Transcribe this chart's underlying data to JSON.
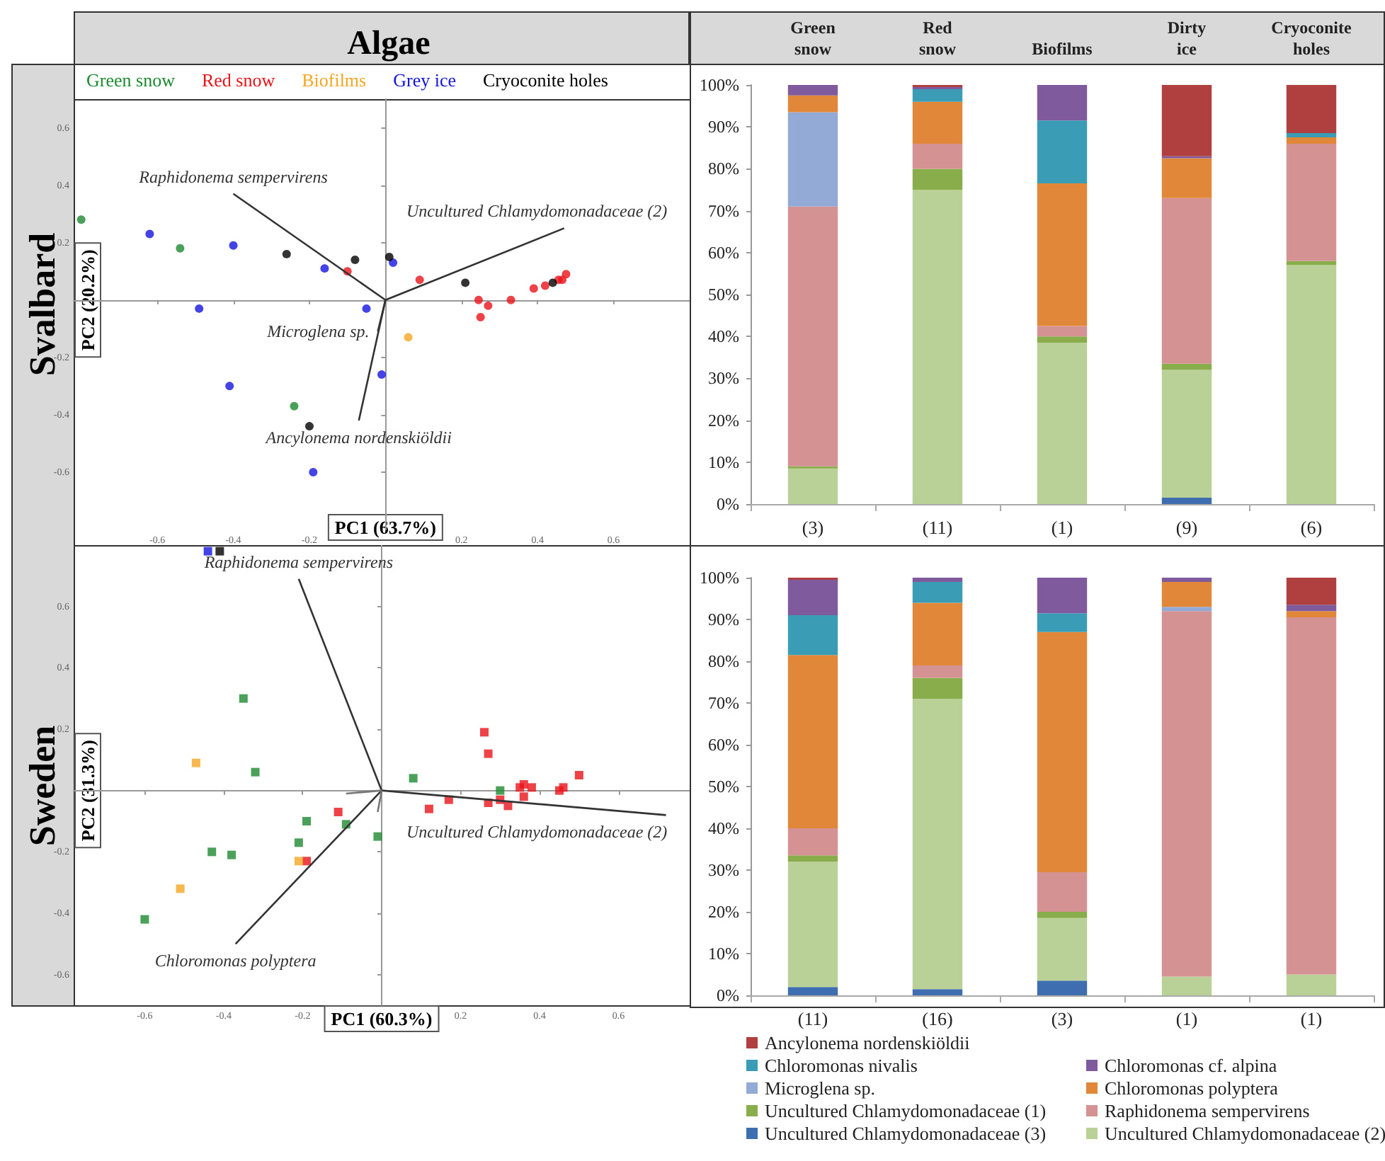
{
  "chart_data": [
    {
      "type": "scatter",
      "title": "Algae",
      "subtitle": "Svalbard",
      "xlabel": "PC1 (63.7%)",
      "ylabel": "PC2 (20.2%)",
      "marker": "circle",
      "legend": "top",
      "xlim": [
        -0.82,
        0.8
      ],
      "ylim": [
        -0.8,
        0.7
      ],
      "xticks": [
        -0.6,
        -0.4,
        -0.2,
        0.2,
        0.4,
        0.6
      ],
      "yticks": [
        -0.6,
        -0.4,
        -0.2,
        0.2,
        0.4,
        0.6
      ],
      "series": [
        {
          "name": "Green snow",
          "color": "#1e8a30",
          "x": [
            -0.8,
            -0.54,
            -0.24
          ],
          "values": [
            0.28,
            0.18,
            -0.37
          ]
        },
        {
          "name": "Red snow",
          "color": "#e8141a",
          "x": [
            -0.1,
            0.09,
            0.245,
            0.27,
            0.25,
            0.33,
            0.39,
            0.42,
            0.455,
            0.465,
            0.475
          ],
          "values": [
            0.1,
            0.07,
            0.0,
            -0.02,
            -0.06,
            0.0,
            0.04,
            0.05,
            0.07,
            0.07,
            0.09
          ]
        },
        {
          "name": "Biofilms",
          "color": "#f5a623",
          "x": [
            0.06
          ],
          "values": [
            -0.13
          ]
        },
        {
          "name": "Grey ice",
          "color": "#1414e0",
          "x": [
            -0.62,
            -0.4,
            -0.49,
            -0.16,
            -0.05,
            0.02,
            -0.01,
            -0.41,
            -0.19
          ],
          "values": [
            0.23,
            0.19,
            -0.03,
            0.11,
            -0.03,
            0.13,
            -0.26,
            -0.3,
            -0.6
          ]
        },
        {
          "name": "Cryoconite holes",
          "color": "#000000",
          "x": [
            -0.26,
            -0.08,
            0.01,
            0.21,
            0.44,
            -0.2
          ],
          "values": [
            0.16,
            0.14,
            0.15,
            0.06,
            0.06,
            -0.44
          ]
        },
        {
          "type": "line",
          "marker": "none",
          "name": "Raphidonema sempervirens",
          "color": "#333333",
          "x": [
            0,
            -0.4
          ],
          "values": [
            0,
            0.37
          ]
        },
        {
          "type": "line",
          "marker": "none",
          "name": "Uncultured Chlamydomonadaceae (2)",
          "color": "#333333",
          "x": [
            0,
            0.47
          ],
          "values": [
            0,
            0.25
          ]
        },
        {
          "type": "line",
          "marker": "none",
          "name": "Microglena sp.",
          "color": "#333333",
          "x": [
            0,
            -0.02
          ],
          "values": [
            0,
            -0.11
          ]
        },
        {
          "type": "line",
          "marker": "none",
          "name": "Ancylonema nordenskiöldii",
          "color": "#333333",
          "x": [
            0,
            -0.07
          ],
          "values": [
            0,
            -0.42
          ]
        }
      ]
    },
    {
      "type": "bar",
      "stacked": true,
      "categories": [
        "(3)",
        "(11)",
        "(1)",
        "(9)",
        "(6)"
      ],
      "annotations": [
        "Green snow",
        "Red snow",
        "Biofilms",
        "Dirty ice",
        "Cryoconite holes"
      ],
      "ylim": [
        0,
        100
      ],
      "yticks": [
        {
          "value": 0,
          "label": "0%"
        },
        {
          "value": 10,
          "label": "10%"
        },
        {
          "value": 20,
          "label": "20%"
        },
        {
          "value": 30,
          "label": "30%"
        },
        {
          "value": 40,
          "label": "40%"
        },
        {
          "value": 50,
          "label": "50%"
        },
        {
          "value": 60,
          "label": "60%"
        },
        {
          "value": 70,
          "label": "70%"
        },
        {
          "value": 80,
          "label": "80%"
        },
        {
          "value": 90,
          "label": "90%"
        },
        {
          "value": 100,
          "label": "100%"
        }
      ],
      "series": [
        {
          "color": "#3f6eb0",
          "values": [
            0,
            0,
            0,
            1.5,
            0
          ]
        },
        {
          "color": "#b9d096",
          "values": [
            8.5,
            75,
            38.5,
            30.5,
            57
          ]
        },
        {
          "color": "#8aad4c",
          "values": [
            0.5,
            5,
            1.5,
            1.5,
            1
          ]
        },
        {
          "color": "#d49292",
          "values": [
            62,
            6,
            2.5,
            39.5,
            28
          ]
        },
        {
          "color": "#93a9d6",
          "values": [
            22.5,
            0,
            0,
            0,
            0
          ]
        },
        {
          "color": "#e0873a",
          "values": [
            4,
            10,
            34,
            9.5,
            1.5
          ]
        },
        {
          "color": "#3a9cb5",
          "values": [
            0,
            3,
            15,
            0,
            1
          ]
        },
        {
          "color": "#7f5b9e",
          "values": [
            2.5,
            0.5,
            8.5,
            0.5,
            0
          ]
        },
        {
          "color": "#b0403f",
          "values": [
            0,
            0.5,
            0,
            17,
            11.5
          ]
        }
      ]
    },
    {
      "type": "scatter",
      "subtitle": "Sweden",
      "xlabel": "PC1 (60.3%)",
      "ylabel": "PC2 (31.3%)",
      "marker": "square",
      "xlim": [
        -0.78,
        0.78
      ],
      "ylim": [
        -0.7,
        0.8
      ],
      "xticks": [
        -0.6,
        -0.4,
        -0.2,
        0.2,
        0.4,
        0.6
      ],
      "yticks": [
        -0.6,
        -0.4,
        -0.2,
        0.2,
        0.4,
        0.6
      ],
      "series": [
        {
          "color": "#1e8a30",
          "x": [
            -0.35,
            -0.32,
            -0.19,
            -0.09,
            -0.21,
            -0.43,
            -0.38,
            -0.6,
            -0.01,
            0.08,
            0.3
          ],
          "values": [
            0.3,
            0.06,
            -0.1,
            -0.11,
            -0.17,
            -0.2,
            -0.21,
            -0.42,
            -0.15,
            0.04,
            0.0
          ]
        },
        {
          "color": "#e8141a",
          "x": [
            -0.11,
            -0.19,
            0.12,
            0.17,
            0.26,
            0.27,
            0.27,
            0.3,
            0.32,
            0.35,
            0.36,
            0.36,
            0.38,
            0.45,
            0.46,
            0.5
          ],
          "values": [
            -0.07,
            -0.23,
            -0.06,
            -0.03,
            0.19,
            0.12,
            -0.04,
            -0.03,
            -0.05,
            0.01,
            0.02,
            -0.02,
            0.01,
            0.0,
            0.01,
            0.05
          ]
        },
        {
          "color": "#f5a623",
          "x": [
            -0.47,
            -0.21,
            -0.51
          ],
          "values": [
            0.09,
            -0.23,
            -0.32
          ]
        },
        {
          "color": "#1414e0",
          "x": [
            -0.44
          ],
          "values": [
            0.78
          ]
        },
        {
          "color": "#000000",
          "x": [
            -0.41
          ],
          "values": [
            0.78
          ]
        },
        {
          "type": "line",
          "marker": "none",
          "name": "Raphidonema sempervirens",
          "color": "#333333",
          "x": [
            0,
            -0.21
          ],
          "values": [
            0,
            0.69
          ]
        },
        {
          "type": "line",
          "marker": "none",
          "name": "Uncultured Chlamydomonadaceae (2)",
          "color": "#333333",
          "x": [
            0,
            0.72
          ],
          "values": [
            0,
            -0.08
          ]
        },
        {
          "type": "line",
          "marker": "none",
          "name": "Chloromonas polyptera",
          "color": "#333333",
          "x": [
            0,
            -0.37
          ],
          "values": [
            0,
            -0.5
          ]
        },
        {
          "type": "line",
          "marker": "none",
          "color": "#777777",
          "x": [
            0,
            -0.09
          ],
          "values": [
            0,
            -0.01
          ]
        },
        {
          "type": "line",
          "marker": "none",
          "color": "#777777",
          "x": [
            0,
            -0.01
          ],
          "values": [
            0,
            -0.07
          ]
        }
      ]
    },
    {
      "type": "bar",
      "stacked": true,
      "categories": [
        "(11)",
        "(16)",
        "(3)",
        "(1)",
        "(1)"
      ],
      "legend": "bottom",
      "ylim": [
        0,
        100
      ],
      "yticks": [
        {
          "value": 0,
          "label": "0%"
        },
        {
          "value": 10,
          "label": "10%"
        },
        {
          "value": 20,
          "label": "20%"
        },
        {
          "value": 30,
          "label": "30%"
        },
        {
          "value": 40,
          "label": "40%"
        },
        {
          "value": 50,
          "label": "50%"
        },
        {
          "value": 60,
          "label": "60%"
        },
        {
          "value": 70,
          "label": "70%"
        },
        {
          "value": 80,
          "label": "80%"
        },
        {
          "value": 90,
          "label": "90%"
        },
        {
          "value": 100,
          "label": "100%"
        }
      ],
      "series": [
        {
          "name": "Uncultured Chlamydomonadaceae (3)",
          "color": "#3f6eb0",
          "values": [
            2,
            1.5,
            3.5,
            0,
            0
          ]
        },
        {
          "name": "Uncultured Chlamydomonadaceae (2)",
          "color": "#b9d096",
          "values": [
            30,
            69.5,
            15,
            4.5,
            5
          ]
        },
        {
          "name": "Uncultured Chlamydomonadaceae (1)",
          "color": "#8aad4c",
          "values": [
            1.5,
            5,
            1.5,
            0,
            0
          ]
        },
        {
          "name": "Raphidonema sempervirens",
          "color": "#d49292",
          "values": [
            6.5,
            3,
            9.5,
            87.5,
            85.5
          ]
        },
        {
          "name": "Microglena sp.",
          "color": "#93a9d6",
          "values": [
            0,
            0,
            0,
            1,
            0
          ]
        },
        {
          "name": "Chloromonas polyptera",
          "color": "#e0873a",
          "values": [
            41.5,
            15,
            57.5,
            6,
            1.5
          ]
        },
        {
          "name": "Chloromonas nivalis",
          "color": "#3a9cb5",
          "values": [
            9.5,
            5,
            4.5,
            0,
            0
          ]
        },
        {
          "name": "Chloromonas cf. alpina",
          "color": "#7f5b9e",
          "values": [
            8.5,
            1,
            8.5,
            1,
            1.5
          ]
        },
        {
          "name": "Ancylonema nordenskiöldii",
          "color": "#b0403f",
          "values": [
            0.5,
            0,
            0,
            0,
            6.5
          ]
        }
      ]
    }
  ]
}
